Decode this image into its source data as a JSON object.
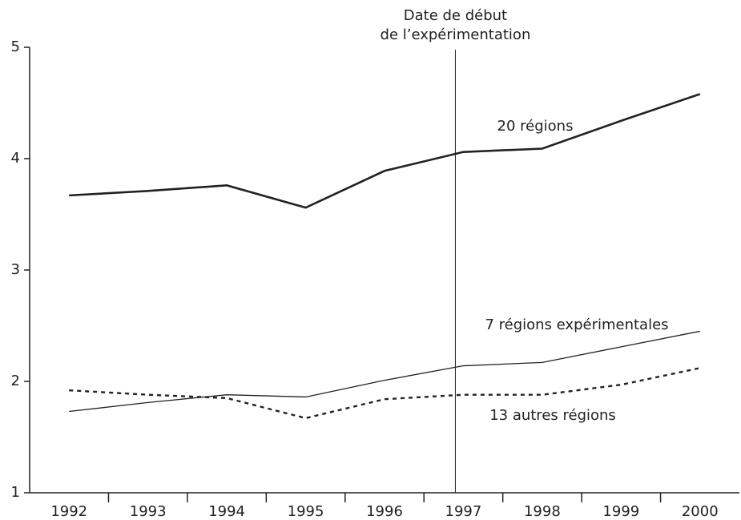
{
  "chart_data": {
    "type": "line",
    "categories": [
      "1992",
      "1993",
      "1994",
      "1995",
      "1996",
      "1997",
      "1998",
      "1999",
      "2000"
    ],
    "series": [
      {
        "name": "20 régions",
        "color": "#222222",
        "line_style": "bold",
        "values": [
          3.67,
          3.71,
          3.76,
          3.56,
          3.89,
          4.06,
          4.09,
          4.34,
          4.58
        ]
      },
      {
        "name": "7 régions expérimentales",
        "color": "#222222",
        "line_style": "thin",
        "values": [
          1.73,
          1.81,
          1.88,
          1.86,
          2.01,
          2.14,
          2.17,
          2.31,
          2.45
        ]
      },
      {
        "name": "13 autres régions",
        "color": "#222222",
        "line_style": "dashed",
        "values": [
          1.92,
          1.88,
          1.85,
          1.67,
          1.84,
          1.88,
          1.88,
          1.97,
          2.12
        ]
      }
    ],
    "ylim": [
      1,
      5
    ],
    "yticks": [
      1,
      2,
      3,
      4,
      5
    ],
    "annotation": {
      "lines": [
        "Date de début",
        "de l’expérimentation"
      ],
      "at_category": "1997"
    }
  }
}
